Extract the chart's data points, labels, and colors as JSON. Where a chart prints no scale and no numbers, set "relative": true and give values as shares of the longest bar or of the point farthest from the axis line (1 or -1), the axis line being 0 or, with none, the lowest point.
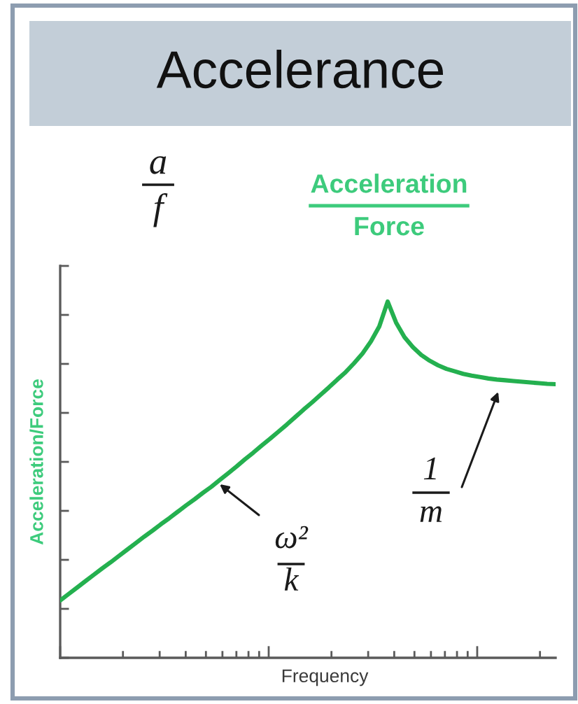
{
  "chart_data": {
    "type": "line",
    "title": "Accelerance",
    "xlabel": "Frequency",
    "ylabel": "Acceleration/Force",
    "relative": true,
    "categories": [
      null,
      null,
      null,
      null,
      null,
      null,
      null,
      null,
      null,
      null,
      null,
      null,
      null,
      null,
      null,
      null,
      null,
      null,
      null,
      null,
      null,
      null,
      null,
      null,
      null,
      null,
      null,
      null,
      null,
      null,
      null,
      null,
      null,
      null,
      null,
      null,
      null,
      null,
      null,
      null,
      null,
      null,
      null,
      null,
      null,
      null,
      null,
      null,
      null,
      null,
      null,
      null,
      null,
      null,
      null,
      null,
      null,
      null,
      null,
      null
    ],
    "series": [
      {
        "color": "#24b04f",
        "values": [
          0.161,
          0.179,
          0.197,
          0.215,
          0.233,
          0.251,
          0.268,
          0.286,
          0.304,
          0.322,
          0.34,
          0.357,
          0.375,
          0.392,
          0.41,
          0.428,
          0.445,
          0.463,
          0.48,
          0.499,
          0.518,
          0.537,
          0.557,
          0.576,
          0.596,
          0.615,
          0.635,
          0.655,
          0.676,
          0.697,
          0.717,
          0.738,
          0.759,
          0.781,
          0.802,
          0.827,
          0.854,
          0.888,
          0.93,
          1.0,
          0.941,
          0.9,
          0.872,
          0.85,
          0.834,
          0.821,
          0.811,
          0.804,
          0.797,
          0.792,
          0.788,
          0.784,
          0.781,
          0.779,
          0.777,
          0.775,
          0.773,
          0.771,
          0.769,
          0.768
        ]
      }
    ],
    "annotations": [
      "a\nf",
      "Acceleration\nForce",
      "ω²\nk",
      "1\nm"
    ]
  }
}
